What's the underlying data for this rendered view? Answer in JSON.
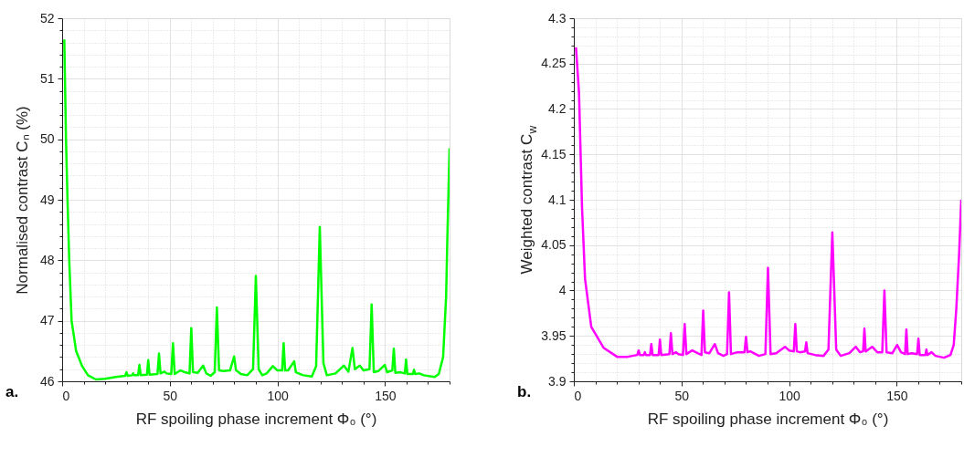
{
  "chart_data": [
    {
      "type": "line",
      "xlabel": "RF spoiling phase increment Φ₀ (°)",
      "ylabel": "Normalised contrast Cₙ (%)",
      "grid": true,
      "annotations": [
        "a."
      ],
      "xlim": [
        0,
        180
      ],
      "ylim": [
        46,
        52
      ],
      "xticks": [
        0,
        {
          "value": 10,
          "label": null
        },
        {
          "value": 20,
          "label": null
        },
        {
          "value": 30,
          "label": null
        },
        {
          "value": 40,
          "label": null
        },
        50,
        {
          "value": 60,
          "label": null
        },
        {
          "value": 70,
          "label": null
        },
        {
          "value": 80,
          "label": null
        },
        {
          "value": 90,
          "label": null
        },
        100,
        {
          "value": 110,
          "label": null
        },
        {
          "value": 120,
          "label": null
        },
        {
          "value": 130,
          "label": null
        },
        {
          "value": 140,
          "label": null
        },
        150,
        {
          "value": 160,
          "label": null
        },
        {
          "value": 170,
          "label": null
        },
        {
          "value": 180,
          "label": null
        }
      ],
      "yticks": [
        46,
        {
          "value": 46.2,
          "label": null
        },
        {
          "value": 46.4,
          "label": null
        },
        {
          "value": 46.6,
          "label": null
        },
        {
          "value": 46.8,
          "label": null
        },
        47,
        {
          "value": 47.2,
          "label": null
        },
        {
          "value": 47.4,
          "label": null
        },
        {
          "value": 47.6,
          "label": null
        },
        {
          "value": 47.8,
          "label": null
        },
        48,
        {
          "value": 48.2,
          "label": null
        },
        {
          "value": 48.4,
          "label": null
        },
        {
          "value": 48.6,
          "label": null
        },
        {
          "value": 48.8,
          "label": null
        },
        49,
        {
          "value": 49.2,
          "label": null
        },
        {
          "value": 49.4,
          "label": null
        },
        {
          "value": 49.6,
          "label": null
        },
        {
          "value": 49.8,
          "label": null
        },
        50,
        {
          "value": 50.2,
          "label": null
        },
        {
          "value": 50.4,
          "label": null
        },
        {
          "value": 50.6,
          "label": null
        },
        {
          "value": 50.8,
          "label": null
        },
        51,
        {
          "value": 51.2,
          "label": null
        },
        {
          "value": 51.4,
          "label": null
        },
        {
          "value": 51.6,
          "label": null
        },
        {
          "value": 51.8,
          "label": null
        },
        52
      ],
      "series": [
        {
          "color": "#00ff00",
          "x": [
            1,
            1.8,
            2.5,
            3.3,
            4.4,
            6.5,
            9.3,
            12,
            15.7,
            20,
            25,
            29.3,
            29.9,
            30.5,
            32.5,
            33,
            33.5,
            35.3,
            35.9,
            36.5,
            39.4,
            40,
            40.6,
            44.3,
            45,
            45.7,
            47.5,
            48.5,
            50.7,
            51.5,
            52.3,
            55,
            57,
            59.2,
            60,
            60.8,
            63,
            65.5,
            67,
            69,
            70.9,
            71.9,
            72.9,
            75,
            78,
            79.9,
            80.8,
            82,
            83,
            86,
            88.7,
            90,
            91.3,
            93,
            95,
            97.9,
            100,
            102.2,
            102.9,
            103.6,
            105,
            107.8,
            108.6,
            112,
            116,
            118,
            119.7,
            121.4,
            123,
            127,
            130.9,
            133,
            134.9,
            136,
            138.3,
            140,
            142.8,
            143.8,
            144.8,
            147,
            149.9,
            151,
            153.4,
            154.1,
            154.8,
            157,
            159.2,
            159.8,
            160.4,
            163,
            163.5,
            164,
            166,
            168,
            173,
            175,
            177,
            178.4,
            179,
            180
          ],
          "values": [
            51.65,
            50,
            49,
            48,
            47,
            46.5,
            46.25,
            46.1,
            46.03,
            46.04,
            46.07,
            46.09,
            46.15,
            46.09,
            46.1,
            46.13,
            46.1,
            46.1,
            46.27,
            46.1,
            46.11,
            46.35,
            46.11,
            46.12,
            46.46,
            46.13,
            46.16,
            46.13,
            46.12,
            46.63,
            46.12,
            46.18,
            46.15,
            46.13,
            46.88,
            46.15,
            46.14,
            46.26,
            46.13,
            46.09,
            46.15,
            47.22,
            46.18,
            46.17,
            46.18,
            46.41,
            46.18,
            46.15,
            46.12,
            46.1,
            46.2,
            47.74,
            46.2,
            46.1,
            46.13,
            46.25,
            46.18,
            46.18,
            46.63,
            46.18,
            46.18,
            46.33,
            46.15,
            46.1,
            46.08,
            46.25,
            48.55,
            46.3,
            46.1,
            46.13,
            46.26,
            46.16,
            46.55,
            46.2,
            46.26,
            46.18,
            46.2,
            47.27,
            46.15,
            46.17,
            46.27,
            46.15,
            46.18,
            46.54,
            46.14,
            46.15,
            46.13,
            46.36,
            46.12,
            46.12,
            46.19,
            46.12,
            46.13,
            46.1,
            46.07,
            46.12,
            46.4,
            47.4,
            48.4,
            49.85
          ]
        }
      ]
    },
    {
      "type": "line",
      "xlabel": "RF spoiling phase increment Φ₀ (°)",
      "ylabel": "Weighted contrast C$_{w}$",
      "grid": true,
      "annotations": [
        "b."
      ],
      "xlim": [
        0,
        180
      ],
      "ylim": [
        3.9,
        4.3
      ],
      "xticks": [
        0,
        {
          "value": 10,
          "label": null
        },
        {
          "value": 20,
          "label": null
        },
        {
          "value": 30,
          "label": null
        },
        {
          "value": 40,
          "label": null
        },
        50,
        {
          "value": 60,
          "label": null
        },
        {
          "value": 70,
          "label": null
        },
        {
          "value": 80,
          "label": null
        },
        {
          "value": 90,
          "label": null
        },
        100,
        {
          "value": 110,
          "label": null
        },
        {
          "value": 120,
          "label": null
        },
        {
          "value": 130,
          "label": null
        },
        {
          "value": 140,
          "label": null
        },
        150,
        {
          "value": 160,
          "label": null
        },
        {
          "value": 170,
          "label": null
        },
        {
          "value": 180,
          "label": null
        }
      ],
      "yticks": [
        3.9,
        {
          "value": 3.91,
          "label": null
        },
        {
          "value": 3.92,
          "label": null
        },
        {
          "value": 3.93,
          "label": null
        },
        {
          "value": 3.94,
          "label": null
        },
        3.95,
        {
          "value": 3.96,
          "label": null
        },
        {
          "value": 3.97,
          "label": null
        },
        {
          "value": 3.98,
          "label": null
        },
        {
          "value": 3.99,
          "label": null
        },
        4,
        {
          "value": 4.01,
          "label": null
        },
        {
          "value": 4.02,
          "label": null
        },
        {
          "value": 4.03,
          "label": null
        },
        {
          "value": 4.04,
          "label": null
        },
        4.05,
        {
          "value": 4.06,
          "label": null
        },
        {
          "value": 4.07,
          "label": null
        },
        {
          "value": 4.08,
          "label": null
        },
        {
          "value": 4.09,
          "label": null
        },
        4.1,
        {
          "value": 4.11,
          "label": null
        },
        {
          "value": 4.12,
          "label": null
        },
        {
          "value": 4.13,
          "label": null
        },
        {
          "value": 4.14,
          "label": null
        },
        4.15,
        {
          "value": 4.16,
          "label": null
        },
        {
          "value": 4.17,
          "label": null
        },
        {
          "value": 4.18,
          "label": null
        },
        {
          "value": 4.19,
          "label": null
        },
        4.2,
        {
          "value": 4.21,
          "label": null
        },
        {
          "value": 4.22,
          "label": null
        },
        {
          "value": 4.23,
          "label": null
        },
        {
          "value": 4.24,
          "label": null
        },
        4.25,
        {
          "value": 4.26,
          "label": null
        },
        {
          "value": 4.27,
          "label": null
        },
        {
          "value": 4.28,
          "label": null
        },
        {
          "value": 4.29,
          "label": null
        },
        4.3
      ],
      "series": [
        {
          "color": "#ff00ff",
          "x": [
            1,
            2.4,
            3.8,
            5.2,
            8.1,
            13.8,
            20.1,
            25,
            29.5,
            30.1,
            30.7,
            32.5,
            33,
            33.5,
            35.4,
            36,
            36.6,
            39.4,
            40,
            40.6,
            44.4,
            45.1,
            45.8,
            47.5,
            48.5,
            50.7,
            51.5,
            52.3,
            55,
            57.5,
            59.3,
            60.1,
            60.9,
            63,
            65.5,
            67,
            69.5,
            71.2,
            72.1,
            73,
            76,
            79.3,
            80,
            80.7,
            82,
            86,
            89,
            90.2,
            91.4,
            94,
            98.1,
            100,
            102.2,
            102.9,
            103.6,
            105,
            107.4,
            108,
            108.6,
            112,
            116,
            118.3,
            120.1,
            121.9,
            124,
            128,
            131,
            133,
            134.4,
            135,
            135.6,
            138.6,
            141,
            143.3,
            144.3,
            145.3,
            148,
            150.2,
            152,
            153.9,
            154.5,
            155.1,
            157,
            159.5,
            160.1,
            160.7,
            163.3,
            163.8,
            164.3,
            166.2,
            168,
            172,
            175,
            176.5,
            177.7,
            179,
            180
          ],
          "values": [
            4.268,
            4.218,
            4.092,
            4.013,
            3.96,
            3.937,
            3.927,
            3.927,
            3.929,
            3.934,
            3.929,
            3.929,
            3.932,
            3.929,
            3.929,
            3.941,
            3.929,
            3.929,
            3.946,
            3.929,
            3.93,
            3.953,
            3.93,
            3.932,
            3.93,
            3.929,
            3.963,
            3.93,
            3.934,
            3.931,
            3.929,
            3.978,
            3.932,
            3.931,
            3.941,
            3.931,
            3.928,
            3.93,
            3.998,
            3.93,
            3.932,
            3.932,
            3.949,
            3.932,
            3.933,
            3.928,
            3.93,
            4.025,
            3.93,
            3.931,
            3.938,
            3.934,
            3.933,
            3.963,
            3.933,
            3.932,
            3.933,
            3.943,
            3.931,
            3.929,
            3.928,
            3.935,
            4.064,
            3.935,
            3.928,
            3.931,
            3.938,
            3.932,
            3.933,
            3.958,
            3.933,
            3.938,
            3.932,
            3.932,
            4.0,
            3.932,
            3.931,
            3.94,
            3.932,
            3.93,
            3.957,
            3.93,
            3.931,
            3.93,
            3.947,
            3.929,
            3.929,
            3.935,
            3.929,
            3.932,
            3.928,
            3.926,
            3.929,
            3.94,
            3.98,
            4.04,
            4.1
          ]
        }
      ]
    }
  ]
}
